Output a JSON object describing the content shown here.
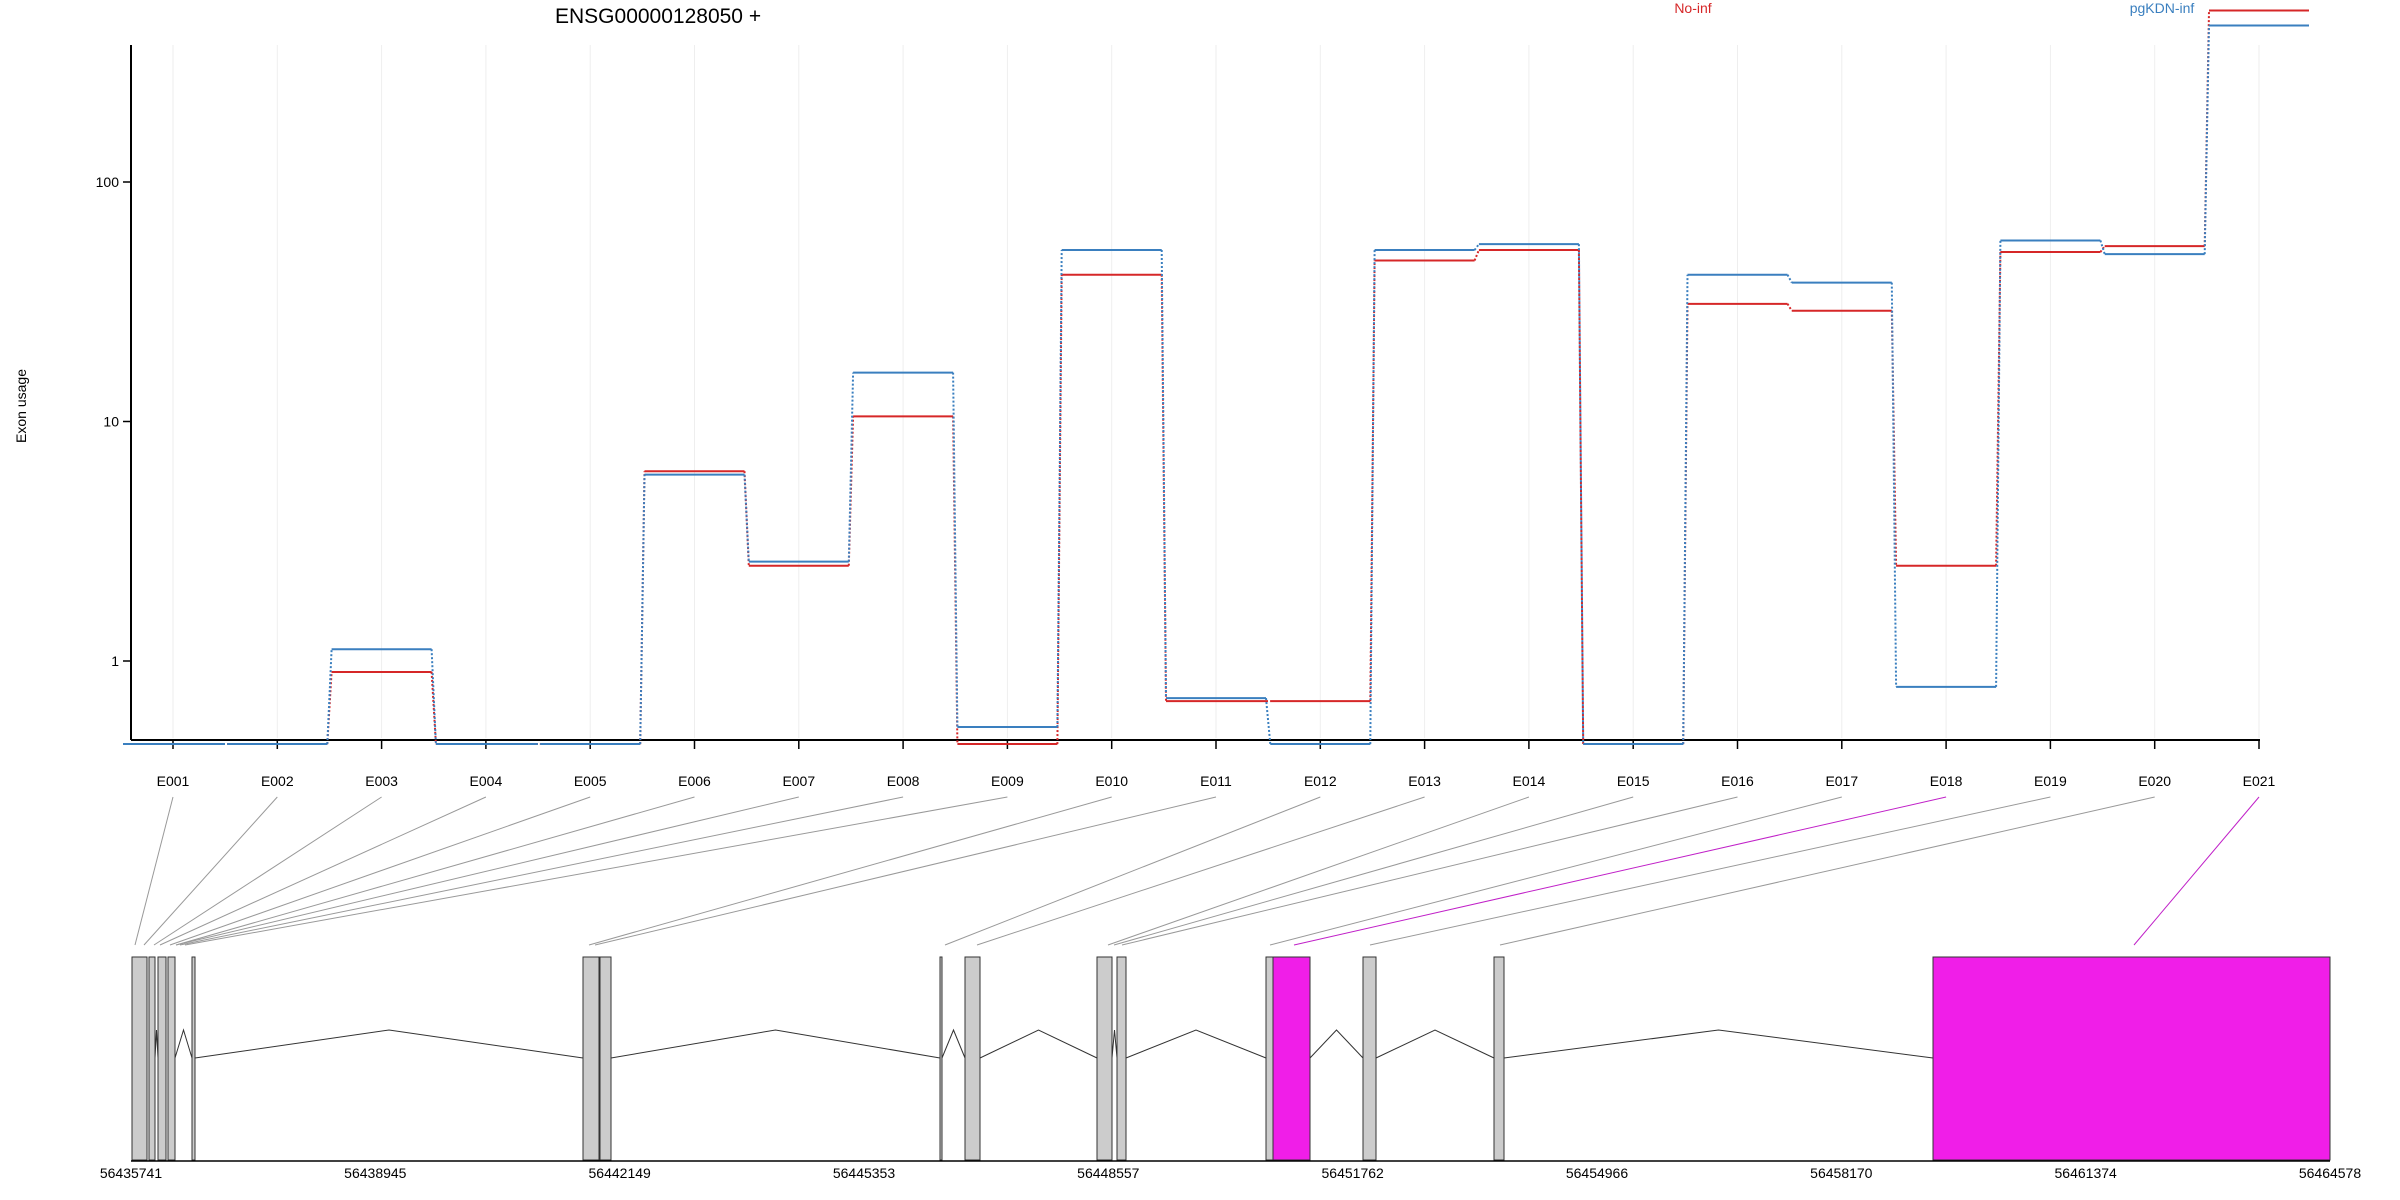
{
  "chart_data": {
    "type": "line",
    "title": "ENSG00000128050 +",
    "ylabel": "Exon usage",
    "y_scale": "log",
    "y_ticks": [
      1,
      10,
      100
    ],
    "y_tick_labels": [
      "1",
      "10",
      "100"
    ],
    "grid": true,
    "legend_placement": "top",
    "categories": [
      "E001",
      "E002",
      "E003",
      "E004",
      "E005",
      "E006",
      "E007",
      "E008",
      "E009",
      "E010",
      "E011",
      "E012",
      "E013",
      "E014",
      "E015",
      "E016",
      "E017",
      "E018",
      "E019",
      "E020",
      "E021"
    ],
    "series": [
      {
        "name": "No-inf",
        "color": "#d62728",
        "values": [
          0.45,
          0.45,
          0.9,
          0.45,
          0.45,
          6.2,
          2.5,
          10.5,
          0.45,
          41,
          0.68,
          0.68,
          47,
          52,
          0.45,
          31,
          29,
          2.5,
          51,
          54,
          520
        ]
      },
      {
        "name": "pgKDN-inf",
        "color": "#3a7fbf",
        "values": [
          0.45,
          0.45,
          1.12,
          0.45,
          0.45,
          6.0,
          2.6,
          16,
          0.53,
          52,
          0.7,
          0.45,
          52,
          55,
          0.45,
          41,
          38,
          0.78,
          57,
          50,
          450
        ]
      }
    ],
    "gene_model": {
      "coordinate_labels": [
        "56435741",
        "56438945",
        "56442149",
        "56445353",
        "56448557",
        "56451762",
        "56454966",
        "56458170",
        "56461374",
        "56464578"
      ],
      "highlight_color": "#f01ee8",
      "exon_color": "#cccccc",
      "highlighted_exons": [
        "E018",
        "E021"
      ]
    }
  }
}
